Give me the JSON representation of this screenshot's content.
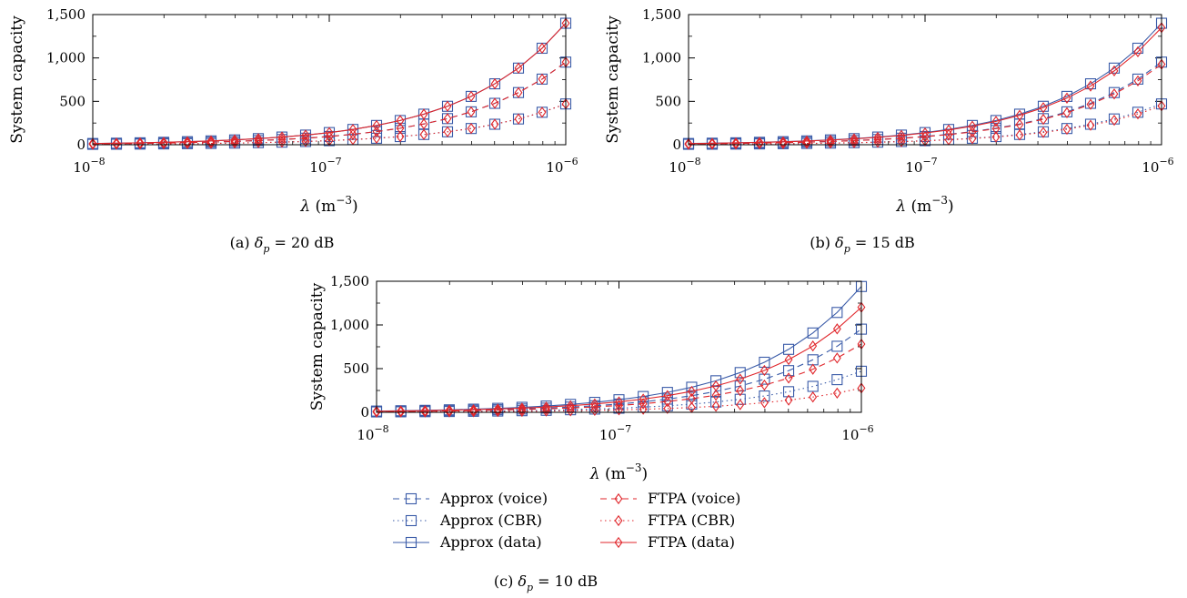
{
  "colors": {
    "approx": "#3a5ba8",
    "ftpa": "#e0262b"
  },
  "legend": [
    {
      "label": "Approx (voice)",
      "marker": "square",
      "style": "dashed",
      "color": "#3a5ba8"
    },
    {
      "label": "Approx (CBR)",
      "marker": "square",
      "style": "dotted",
      "color": "#3a5ba8"
    },
    {
      "label": "Approx (data)",
      "marker": "square",
      "style": "solid",
      "color": "#3a5ba8"
    },
    {
      "label": "FTPA (voice)",
      "marker": "diamond",
      "style": "dashed",
      "color": "#e0262b"
    },
    {
      "label": "FTPA (CBR)",
      "marker": "diamond",
      "style": "dotted",
      "color": "#e0262b"
    },
    {
      "label": "FTPA (data)",
      "marker": "diamond",
      "style": "solid",
      "color": "#e0262b"
    }
  ],
  "chart_data": [
    {
      "type": "line",
      "caption": "(a) δp = 20 dB",
      "ylabel": "System capacity",
      "xlabel": "λ (m−3)",
      "xscale": "log",
      "xlim": [
        1e-08,
        1e-06
      ],
      "ylim": [
        0,
        1500
      ],
      "xticks": [
        "10−8",
        "10−7",
        "10−6"
      ],
      "yticks": [
        "0",
        "500",
        "1,000",
        "1,500"
      ],
      "x_exponents": [
        -8,
        -7.9,
        -7.8,
        -7.7,
        -7.6,
        -7.5,
        -7.4,
        -7.3,
        -7.2,
        -7.1,
        -7,
        -6.9,
        -6.8,
        -6.7,
        -6.6,
        -6.5,
        -6.4,
        -6.3,
        -6.2,
        -6.1,
        -6
      ],
      "series": [
        {
          "name": "Approx (voice)",
          "values": [
            9.5,
            12,
            15,
            19,
            24,
            30,
            38,
            48,
            60,
            75,
            95,
            120,
            151,
            190,
            239,
            301,
            379,
            477,
            601,
            756,
            952
          ]
        },
        {
          "name": "Approx (CBR)",
          "values": [
            4.7,
            5.9,
            7.4,
            9.4,
            11.8,
            14.8,
            18.7,
            23.5,
            29.6,
            37.3,
            47,
            59.2,
            74.5,
            93.8,
            118,
            149,
            187,
            236,
            297,
            374,
            470
          ]
        },
        {
          "name": "Approx (data)",
          "values": [
            14,
            17.6,
            22.2,
            27.9,
            35.1,
            44.2,
            55.7,
            70.1,
            88.3,
            111,
            140,
            176,
            222,
            279,
            352,
            443,
            557,
            702,
            883,
            1112,
            1400
          ]
        },
        {
          "name": "FTPA (voice)",
          "values": [
            9.5,
            12,
            15,
            19,
            24,
            30,
            38,
            48,
            60,
            75,
            95,
            120,
            151,
            190,
            239,
            301,
            379,
            477,
            601,
            756,
            952
          ]
        },
        {
          "name": "FTPA (CBR)",
          "values": [
            4.7,
            5.9,
            7.4,
            9.4,
            11.8,
            14.8,
            18.7,
            23.5,
            29.6,
            37.3,
            47,
            59.2,
            74.5,
            93.8,
            118,
            149,
            187,
            236,
            297,
            374,
            470
          ]
        },
        {
          "name": "FTPA (data)",
          "values": [
            14,
            17.6,
            22.2,
            27.9,
            35.1,
            44.2,
            55.7,
            70.1,
            88.3,
            111,
            140,
            176,
            222,
            279,
            352,
            443,
            557,
            702,
            883,
            1112,
            1400
          ]
        }
      ]
    },
    {
      "type": "line",
      "caption": "(b) δp = 15 dB",
      "ylabel": "System capacity",
      "xlabel": "λ (m−3)",
      "xscale": "log",
      "xlim": [
        1e-08,
        1e-06
      ],
      "ylim": [
        0,
        1500
      ],
      "xticks": [
        "10−8",
        "10−7",
        "10−6"
      ],
      "yticks": [
        "0",
        "500",
        "1,000",
        "1,500"
      ],
      "x_exponents": [
        -8,
        -7.9,
        -7.8,
        -7.7,
        -7.6,
        -7.5,
        -7.4,
        -7.3,
        -7.2,
        -7.1,
        -7,
        -6.9,
        -6.8,
        -6.7,
        -6.6,
        -6.5,
        -6.4,
        -6.3,
        -6.2,
        -6.1,
        -6
      ],
      "series": [
        {
          "name": "Approx (voice)",
          "values": [
            9.5,
            12,
            15,
            19,
            24,
            30,
            38,
            48,
            60,
            75,
            95,
            120,
            151,
            190,
            239,
            301,
            379,
            477,
            601,
            756,
            952
          ]
        },
        {
          "name": "Approx (CBR)",
          "values": [
            4.7,
            5.9,
            7.4,
            9.4,
            11.8,
            14.8,
            18.7,
            23.5,
            29.6,
            37.3,
            47,
            59.2,
            74.5,
            93.8,
            118,
            149,
            187,
            236,
            297,
            374,
            470
          ]
        },
        {
          "name": "Approx (data)",
          "values": [
            14,
            17.6,
            22.2,
            27.9,
            35.1,
            44.2,
            55.7,
            70.1,
            88.3,
            111,
            140,
            176,
            222,
            279,
            352,
            443,
            557,
            702,
            883,
            1112,
            1400
          ]
        },
        {
          "name": "FTPA (voice)",
          "values": [
            9.4,
            11.8,
            14.8,
            18.6,
            23.4,
            29.4,
            37,
            46.6,
            58.7,
            73.8,
            92.9,
            117,
            147,
            185,
            233,
            293,
            369,
            465,
            585,
            736,
            927
          ]
        },
        {
          "name": "FTPA (CBR)",
          "values": [
            4.5,
            5.6,
            7.1,
            8.9,
            11.2,
            14.1,
            17.8,
            22.4,
            28.2,
            35.5,
            44.7,
            56.2,
            70.8,
            89.1,
            112,
            141,
            178,
            224,
            282,
            355,
            447
          ]
        },
        {
          "name": "FTPA (data)",
          "values": [
            13.5,
            17,
            21.4,
            26.9,
            33.9,
            42.7,
            53.7,
            67.6,
            85.1,
            107,
            135,
            170,
            214,
            269,
            339,
            427,
            537,
            676,
            851,
            1071,
            1349
          ]
        }
      ]
    },
    {
      "type": "line",
      "caption": "(c) δp = 10 dB",
      "ylabel": "System capacity",
      "xlabel": "λ (m−3)",
      "xscale": "log",
      "xlim": [
        1e-08,
        1e-06
      ],
      "ylim": [
        0,
        1500
      ],
      "xticks": [
        "10−8",
        "10−7",
        "10−6"
      ],
      "yticks": [
        "0",
        "500",
        "1,000",
        "1,500"
      ],
      "x_exponents": [
        -8,
        -7.9,
        -7.8,
        -7.7,
        -7.6,
        -7.5,
        -7.4,
        -7.3,
        -7.2,
        -7.1,
        -7,
        -6.9,
        -6.8,
        -6.7,
        -6.6,
        -6.5,
        -6.4,
        -6.3,
        -6.2,
        -6.1,
        -6
      ],
      "series": [
        {
          "name": "Approx (voice)",
          "values": [
            9.5,
            12,
            15,
            19,
            24,
            30,
            38,
            48,
            60,
            75,
            95,
            120,
            151,
            190,
            239,
            301,
            379,
            477,
            601,
            756,
            952
          ]
        },
        {
          "name": "Approx (CBR)",
          "values": [
            4.7,
            5.9,
            7.4,
            9.4,
            11.8,
            14.8,
            18.7,
            23.5,
            29.6,
            37.3,
            47,
            59.2,
            74.5,
            93.8,
            118,
            149,
            187,
            236,
            297,
            374,
            470
          ]
        },
        {
          "name": "Approx (data)",
          "values": [
            14.4,
            18.1,
            22.8,
            28.7,
            36.1,
            45.5,
            57.3,
            72.1,
            90.8,
            114,
            144,
            181,
            228,
            287,
            361,
            455,
            573,
            721,
            908,
            1143,
            1440
          ]
        },
        {
          "name": "FTPA (voice)",
          "values": [
            7.8,
            9.8,
            12.4,
            15.6,
            19.6,
            24.7,
            31.1,
            39.2,
            49.3,
            62.1,
            78.1,
            98.3,
            124,
            156,
            196,
            247,
            311,
            392,
            493,
            621,
            781
          ]
        },
        {
          "name": "FTPA (CBR)",
          "values": [
            2.8,
            3.5,
            4.4,
            5.5,
            7,
            8.8,
            11,
            13.9,
            17.5,
            22,
            27.7,
            34.9,
            43.9,
            55.3,
            69.6,
            87.6,
            110,
            139,
            175,
            220,
            277
          ]
        },
        {
          "name": "FTPA (data)",
          "values": [
            12.1,
            15.2,
            19.1,
            24,
            30.3,
            38.1,
            47.9,
            60.3,
            75.9,
            95.6,
            120,
            151,
            191,
            240,
            302,
            380,
            479,
            603,
            759,
            955,
            1202
          ]
        }
      ]
    }
  ]
}
